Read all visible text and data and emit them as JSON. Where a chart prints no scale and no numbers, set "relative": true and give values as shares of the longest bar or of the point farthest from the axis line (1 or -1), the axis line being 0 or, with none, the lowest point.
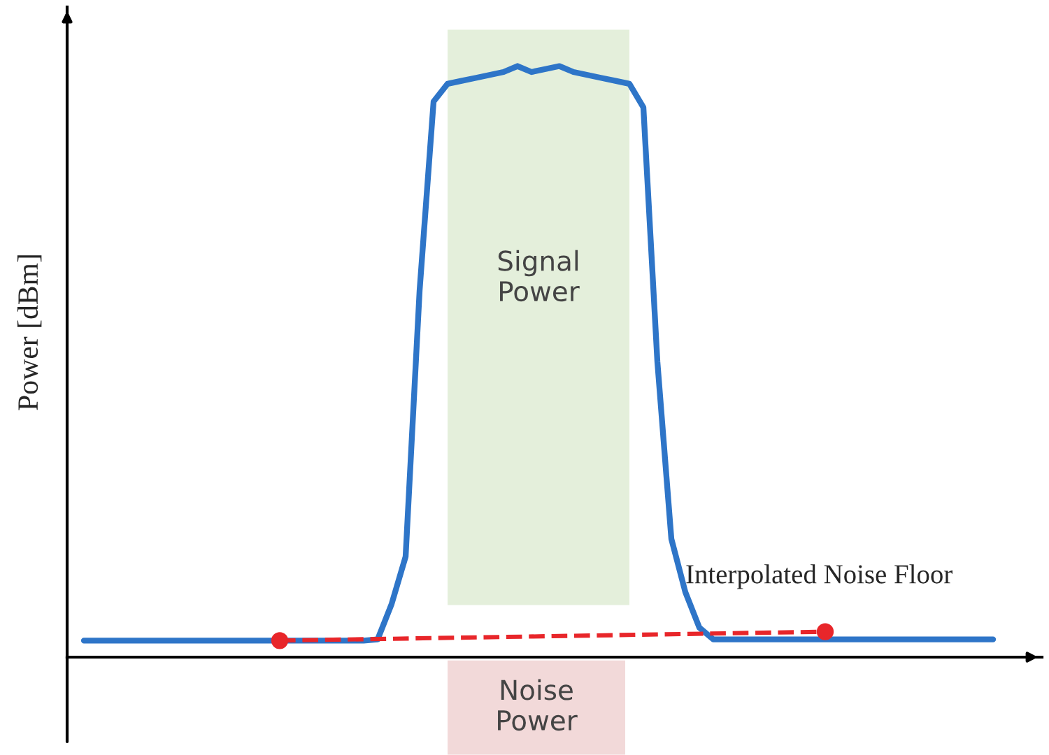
{
  "chart_data": {
    "type": "line",
    "relative": true,
    "ylabel": "Power [dBm]",
    "categories": [
      null,
      null,
      null,
      null,
      null,
      null,
      null,
      null,
      null,
      null,
      null,
      null,
      null,
      null,
      null,
      null,
      null,
      null,
      null,
      null,
      null,
      null,
      null,
      null,
      null,
      null,
      null,
      null,
      null,
      null,
      null,
      null,
      null,
      null,
      null,
      null,
      null,
      null,
      null,
      null,
      null,
      null,
      null,
      null,
      null,
      null,
      null,
      null,
      null,
      null,
      null,
      null,
      null,
      null,
      null,
      null,
      null,
      null,
      null,
      null,
      null,
      null,
      null,
      null,
      null,
      null
    ],
    "series": [
      {
        "color": "#2e75c8",
        "marker": "none",
        "line_style": "solid",
        "values": [
          0.028,
          0.028,
          0.028,
          0.028,
          0.028,
          0.028,
          0.028,
          0.028,
          0.028,
          0.028,
          0.028,
          0.028,
          0.028,
          0.028,
          0.028,
          0.028,
          0.028,
          0.028,
          0.028,
          0.028,
          0.028,
          0.03,
          0.09,
          0.17,
          0.62,
          0.94,
          0.97,
          0.975,
          0.98,
          0.985,
          0.99,
          1.0,
          0.99,
          0.995,
          1.0,
          0.99,
          0.985,
          0.98,
          0.975,
          0.97,
          0.93,
          0.5,
          0.2,
          0.11,
          0.05,
          0.03,
          0.03,
          0.03,
          0.03,
          0.03,
          0.03,
          0.03,
          0.03,
          0.03,
          0.03,
          0.03,
          0.03,
          0.03,
          0.03,
          0.03,
          0.03,
          0.03,
          0.03,
          0.03,
          0.03,
          0.03
        ]
      },
      {
        "color": "#e8262a",
        "marker": "circle",
        "line_style": "dashed",
        "values": [
          null,
          null,
          null,
          null,
          null,
          null,
          null,
          null,
          null,
          null,
          null,
          null,
          null,
          null,
          0.028,
          null,
          null,
          null,
          null,
          null,
          null,
          null,
          null,
          null,
          null,
          null,
          null,
          null,
          null,
          null,
          null,
          null,
          null,
          null,
          null,
          null,
          null,
          null,
          null,
          null,
          null,
          null,
          null,
          null,
          null,
          null,
          null,
          null,
          null,
          null,
          null,
          null,
          null,
          0.043,
          null,
          null,
          null,
          null,
          null,
          null,
          null,
          null,
          null,
          null,
          null,
          null
        ]
      }
    ],
    "annotations": [
      "Signal Power",
      "Noise Power",
      "Interpolated Noise Floor"
    ]
  }
}
